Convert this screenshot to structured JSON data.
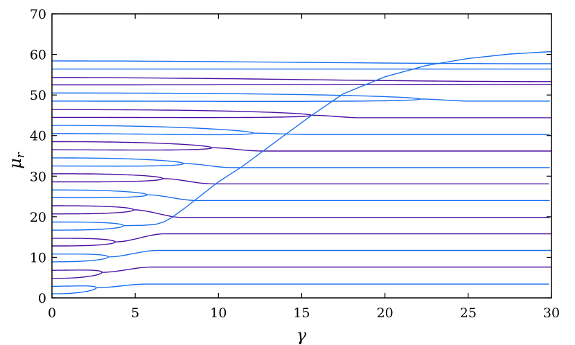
{
  "chart_data": {
    "type": "line",
    "title": "",
    "xlabel": "γ",
    "ylabel_main": "μ",
    "ylabel_sub": "r",
    "xlim": [
      0,
      30
    ],
    "ylim": [
      0,
      70
    ],
    "xticks": [
      "0",
      "5",
      "10",
      "15",
      "20",
      "25",
      "30"
    ],
    "yticks": [
      "0",
      "10",
      "20",
      "30",
      "40",
      "50",
      "60",
      "70"
    ],
    "grid": false,
    "legend": "none",
    "colors": {
      "blue": "#1a6ff0",
      "purple": "#4a0ea3"
    },
    "merging_pairs": [
      {
        "color": "blue",
        "lower_start": 1.0,
        "upper_start": 2.85,
        "merge_gamma": 2.66,
        "merge_mu": 2.5,
        "end_mu": 3.4
      },
      {
        "color": "purple",
        "lower_start": 4.8,
        "upper_start": 6.8,
        "merge_gamma": 3.0,
        "merge_mu": 6.3,
        "end_mu": 7.6
      },
      {
        "color": "blue",
        "lower_start": 8.9,
        "upper_start": 10.8,
        "merge_gamma": 3.37,
        "merge_mu": 10.1,
        "end_mu": 11.7
      },
      {
        "color": "purple",
        "lower_start": 12.8,
        "upper_start": 14.7,
        "merge_gamma": 3.8,
        "merge_mu": 13.8,
        "end_mu": 15.8
      },
      {
        "color": "blue",
        "lower_start": 16.7,
        "upper_start": 18.7,
        "merge_gamma": 4.3,
        "merge_mu": 17.8,
        "end_mu": null
      },
      {
        "color": "purple",
        "lower_start": 20.7,
        "upper_start": 22.7,
        "merge_gamma": 4.9,
        "merge_mu": 21.7,
        "end_mu": 19.8
      },
      {
        "color": "blue",
        "lower_start": 24.7,
        "upper_start": 26.6,
        "merge_gamma": 5.7,
        "merge_mu": 25.4,
        "end_mu": 24.0
      },
      {
        "color": "purple",
        "lower_start": 28.6,
        "upper_start": 30.6,
        "merge_gamma": 6.66,
        "merge_mu": 29.4,
        "end_mu": 28.1
      },
      {
        "color": "blue",
        "lower_start": 32.5,
        "upper_start": 34.5,
        "merge_gamma": 7.9,
        "merge_mu": 33.1,
        "end_mu": 32.1
      },
      {
        "color": "purple",
        "lower_start": 36.5,
        "upper_start": 38.5,
        "merge_gamma": 9.6,
        "merge_mu": 37.0,
        "end_mu": 36.2
      },
      {
        "color": "blue",
        "lower_start": 40.5,
        "upper_start": 42.5,
        "merge_gamma": 12.1,
        "merge_mu": 40.6,
        "end_mu": 40.3
      },
      {
        "color": "purple",
        "lower_start": 44.5,
        "upper_start": 46.4,
        "merge_gamma": 15.6,
        "merge_mu": 45.0,
        "end_mu": 44.4
      },
      {
        "color": "blue",
        "lower_start": 48.5,
        "upper_start": 50.5,
        "merge_gamma": 22.1,
        "merge_mu": 49.0,
        "end_mu": 48.5
      }
    ],
    "flat_lines": [
      {
        "color": "purple",
        "start_mu": 52.5,
        "end_mu": 52.6
      },
      {
        "color": "purple",
        "start_mu": 54.3,
        "end_mu": 53.3
      },
      {
        "color": "blue",
        "start_mu": 56.4,
        "end_mu": 56.4
      },
      {
        "color": "blue",
        "start_mu": 58.4,
        "end_mu": 57.7
      }
    ],
    "rising_curve": {
      "color": "blue",
      "points": [
        [
          4.3,
          17.8
        ],
        [
          5.5,
          17.9
        ],
        [
          6.2,
          18.1
        ],
        [
          6.7,
          18.7
        ],
        [
          7.2,
          19.8
        ],
        [
          8,
          22.2
        ],
        [
          10,
          28.6
        ],
        [
          11.4,
          32.3
        ],
        [
          14.1,
          40.5
        ],
        [
          15.6,
          45.0
        ],
        [
          17.5,
          50.3
        ],
        [
          20,
          54.5
        ],
        [
          22.5,
          57.3
        ],
        [
          25,
          59.0
        ],
        [
          27.5,
          60.1
        ],
        [
          30,
          60.7
        ]
      ]
    }
  }
}
